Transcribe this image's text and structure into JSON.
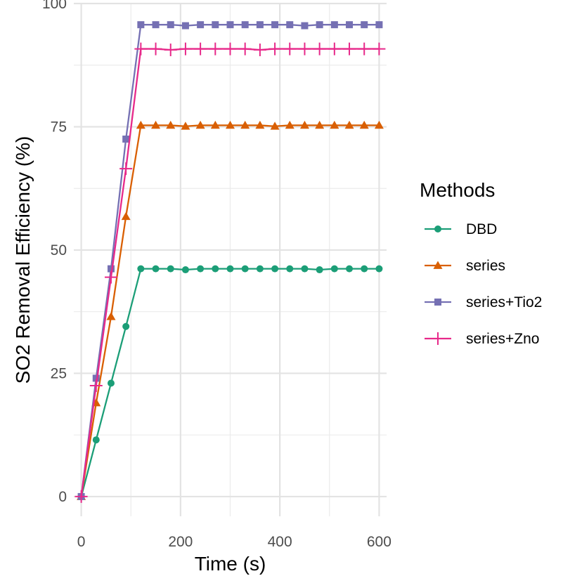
{
  "chart_data": {
    "type": "line",
    "title": "",
    "xlabel": "Time (s)",
    "ylabel": "SO2 Removal Efficiency (%)",
    "xlim": [
      -15,
      615
    ],
    "ylim": [
      -4,
      100
    ],
    "x_ticks": [
      0,
      200,
      400,
      600
    ],
    "y_ticks": [
      0,
      25,
      50,
      75,
      100
    ],
    "grid": true,
    "legend": {
      "title": "Methods",
      "position": "right"
    },
    "x": [
      0,
      30,
      60,
      90,
      120,
      150,
      180,
      210,
      240,
      270,
      300,
      330,
      360,
      390,
      420,
      450,
      480,
      510,
      540,
      570,
      600
    ],
    "series": [
      {
        "name": "DBD",
        "color": "#1b9e77",
        "marker": "circle",
        "values": [
          0,
          11.5,
          23,
          34.5,
          46.2,
          46.2,
          46.2,
          46.0,
          46.2,
          46.2,
          46.2,
          46.2,
          46.2,
          46.2,
          46.2,
          46.2,
          46.0,
          46.2,
          46.2,
          46.2,
          46.2
        ]
      },
      {
        "name": "series",
        "color": "#d95f02",
        "marker": "triangle",
        "values": [
          0,
          19,
          36.5,
          56.8,
          75.3,
          75.3,
          75.3,
          75.1,
          75.3,
          75.3,
          75.3,
          75.3,
          75.3,
          75.1,
          75.3,
          75.3,
          75.3,
          75.3,
          75.3,
          75.3,
          75.3
        ]
      },
      {
        "name": "series+Tio2",
        "color": "#7570b3",
        "marker": "square",
        "values": [
          0,
          24,
          46.2,
          72.5,
          95.7,
          95.7,
          95.7,
          95.5,
          95.7,
          95.7,
          95.7,
          95.7,
          95.7,
          95.7,
          95.7,
          95.5,
          95.7,
          95.7,
          95.7,
          95.7,
          95.7
        ]
      },
      {
        "name": "series+Zno",
        "color": "#e7298a",
        "marker": "plus",
        "values": [
          0,
          22.5,
          44.5,
          66.5,
          90.8,
          90.8,
          90.6,
          90.8,
          90.8,
          90.8,
          90.8,
          90.8,
          90.6,
          90.8,
          90.8,
          90.8,
          90.8,
          90.8,
          90.8,
          90.8,
          90.8
        ]
      }
    ]
  }
}
